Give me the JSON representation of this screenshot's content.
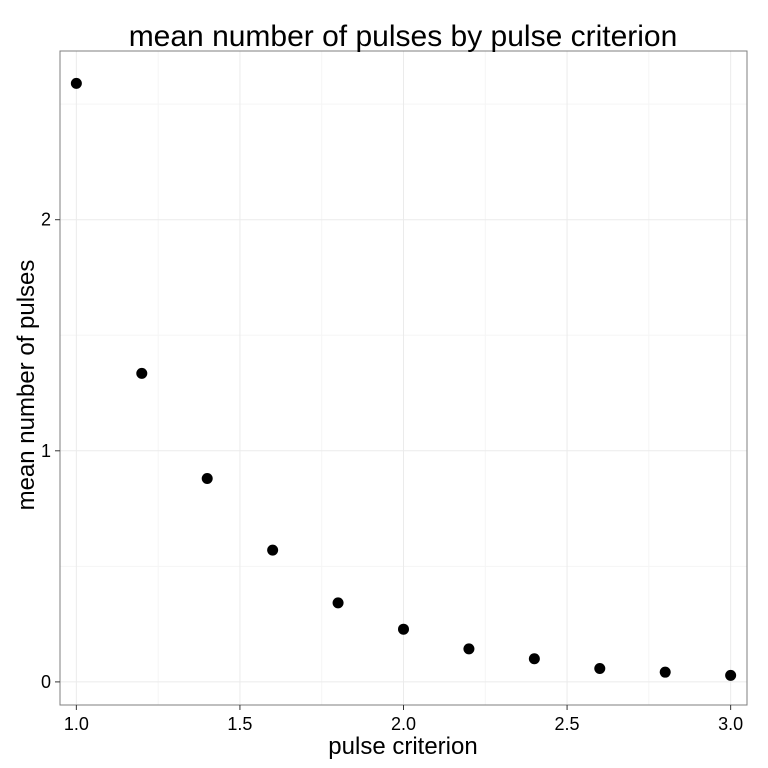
{
  "chart_data": {
    "type": "scatter",
    "title": "mean number of pulses by pulse criterion",
    "xlabel": "pulse criterion",
    "ylabel": "mean number of pulses",
    "xlim": [
      0.95,
      3.05
    ],
    "ylim": [
      -0.1,
      2.73
    ],
    "xticks": [
      1.0,
      1.5,
      2.0,
      2.5,
      3.0
    ],
    "xtick_labels": [
      "1.0",
      "1.5",
      "2.0",
      "2.5",
      "3.0"
    ],
    "yticks": [
      0,
      1,
      2
    ],
    "ytick_labels": [
      "0",
      "1",
      "2"
    ],
    "grid": true,
    "legend": "none",
    "point_color": "#000000",
    "series": [
      {
        "x": [
          1.0,
          1.2,
          1.4,
          1.6,
          1.8,
          2.0,
          2.2,
          2.4,
          2.6,
          2.8,
          3.0
        ],
        "y": [
          2.59,
          1.335,
          0.88,
          0.57,
          0.342,
          0.228,
          0.143,
          0.1,
          0.058,
          0.042,
          0.028
        ]
      }
    ]
  }
}
